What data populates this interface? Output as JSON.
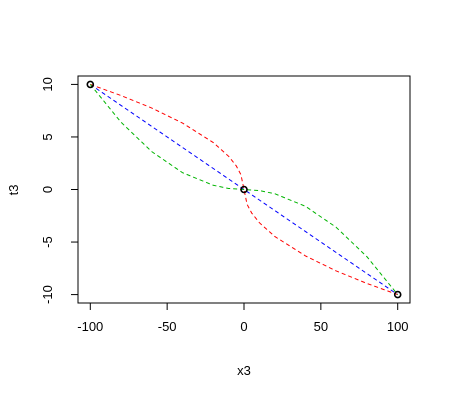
{
  "chart_data": {
    "type": "line",
    "xlabel": "x3",
    "ylabel": "t3",
    "xlim": [
      -108,
      108
    ],
    "ylim": [
      -10.8,
      10.8
    ],
    "xticks": [
      -100,
      -50,
      0,
      50,
      100
    ],
    "yticks": [
      -10,
      -5,
      0,
      5,
      10
    ],
    "series": [
      {
        "color": "#0000ff",
        "style": "dashed",
        "x": [
          -100,
          100
        ],
        "values": [
          10,
          -10
        ]
      },
      {
        "color": "#ff0000",
        "style": "dashed",
        "x": [
          -100,
          -80,
          -60,
          -40,
          -20,
          -10,
          -5,
          -2,
          0,
          2,
          5,
          10,
          20,
          40,
          60,
          80,
          100
        ],
        "values": [
          10,
          8.94,
          7.75,
          6.32,
          4.47,
          3.16,
          2.24,
          1.41,
          0,
          -1.41,
          -2.24,
          -3.16,
          -4.47,
          -6.32,
          -7.75,
          -8.94,
          -10
        ]
      },
      {
        "color": "#00b400",
        "style": "dashed",
        "x": [
          -100,
          -80,
          -60,
          -40,
          -20,
          -10,
          0,
          10,
          20,
          40,
          60,
          80,
          100
        ],
        "values": [
          10,
          6.4,
          3.6,
          1.6,
          0.4,
          0.1,
          0,
          -0.1,
          -0.4,
          -1.6,
          -3.6,
          -6.4,
          -10
        ]
      },
      {
        "color": "#000000",
        "style": "points",
        "x": [
          -100,
          0,
          100
        ],
        "values": [
          10,
          0,
          -10
        ]
      }
    ]
  }
}
